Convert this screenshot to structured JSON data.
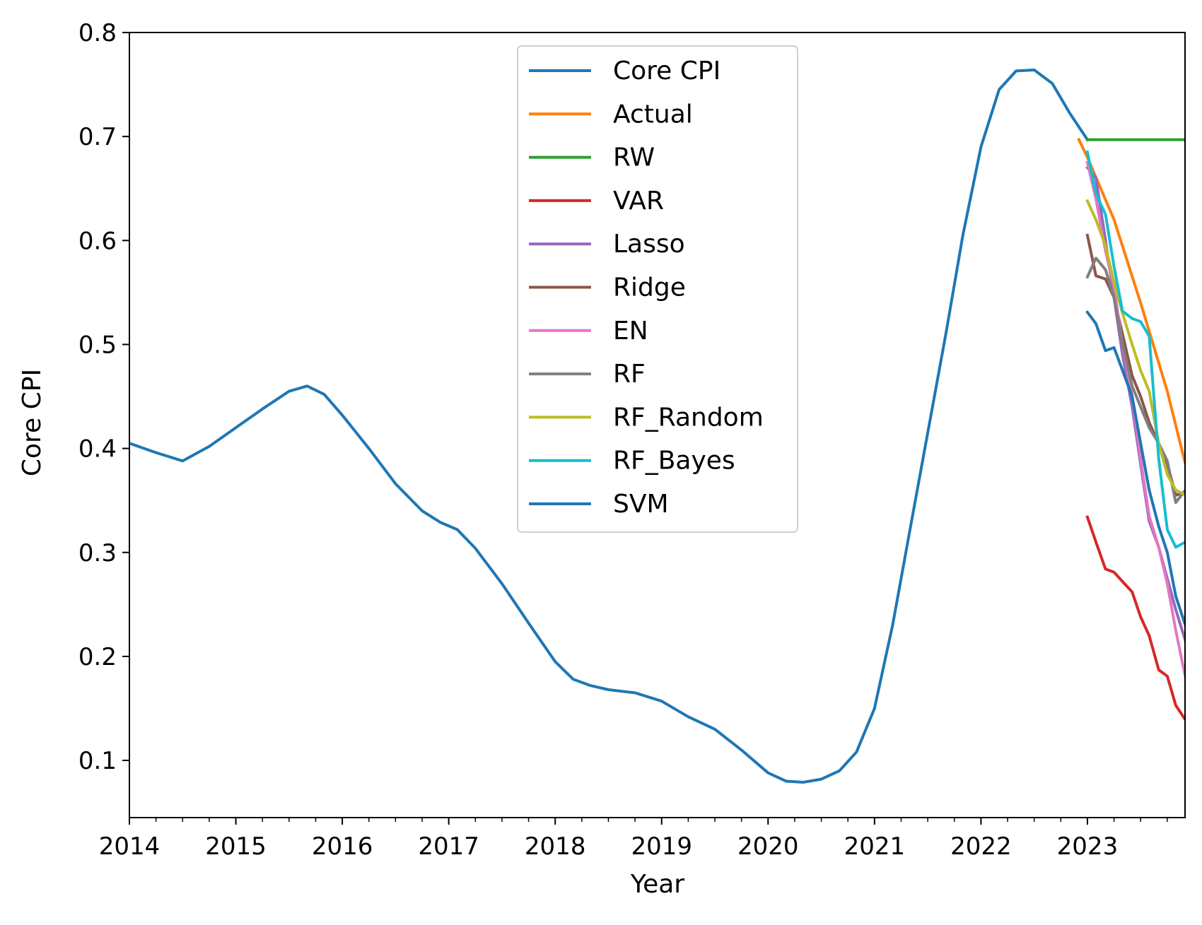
{
  "chart_data": {
    "type": "line",
    "xlabel": "Year",
    "ylabel": "Core CPI",
    "xlim": [
      2014.0,
      2023.917
    ],
    "ylim": [
      0.045,
      0.8
    ],
    "x_ticks": [
      2014,
      2015,
      2016,
      2017,
      2018,
      2019,
      2020,
      2021,
      2022,
      2023
    ],
    "y_ticks": [
      0.1,
      0.2,
      0.3,
      0.4,
      0.5,
      0.6,
      0.7,
      0.8
    ],
    "y_tick_labels": [
      "0.1",
      "0.2",
      "0.3",
      "0.4",
      "0.5",
      "0.6",
      "0.7",
      "0.8"
    ],
    "legend_position": "top-center",
    "series": [
      {
        "name": "Core CPI",
        "color": "#1f77b4",
        "points": [
          [
            2014.0,
            0.405
          ],
          [
            2014.25,
            0.396
          ],
          [
            2014.5,
            0.388
          ],
          [
            2014.75,
            0.402
          ],
          [
            2015.0,
            0.42
          ],
          [
            2015.25,
            0.438
          ],
          [
            2015.5,
            0.455
          ],
          [
            2015.67,
            0.46
          ],
          [
            2015.83,
            0.452
          ],
          [
            2016.0,
            0.432
          ],
          [
            2016.25,
            0.4
          ],
          [
            2016.5,
            0.366
          ],
          [
            2016.75,
            0.34
          ],
          [
            2016.92,
            0.329
          ],
          [
            2017.08,
            0.322
          ],
          [
            2017.25,
            0.304
          ],
          [
            2017.5,
            0.27
          ],
          [
            2017.75,
            0.232
          ],
          [
            2018.0,
            0.195
          ],
          [
            2018.17,
            0.178
          ],
          [
            2018.33,
            0.172
          ],
          [
            2018.5,
            0.168
          ],
          [
            2018.75,
            0.165
          ],
          [
            2019.0,
            0.157
          ],
          [
            2019.25,
            0.142
          ],
          [
            2019.5,
            0.13
          ],
          [
            2019.75,
            0.11
          ],
          [
            2020.0,
            0.088
          ],
          [
            2020.17,
            0.08
          ],
          [
            2020.33,
            0.079
          ],
          [
            2020.5,
            0.082
          ],
          [
            2020.67,
            0.09
          ],
          [
            2020.83,
            0.108
          ],
          [
            2021.0,
            0.15
          ],
          [
            2021.17,
            0.23
          ],
          [
            2021.33,
            0.32
          ],
          [
            2021.5,
            0.415
          ],
          [
            2021.67,
            0.51
          ],
          [
            2021.83,
            0.605
          ],
          [
            2022.0,
            0.69
          ],
          [
            2022.17,
            0.745
          ],
          [
            2022.33,
            0.763
          ],
          [
            2022.5,
            0.764
          ],
          [
            2022.67,
            0.751
          ],
          [
            2022.83,
            0.723
          ],
          [
            2023.0,
            0.697
          ]
        ]
      },
      {
        "name": "Actual",
        "color": "#ff7f0e",
        "points": [
          [
            2022.92,
            0.697
          ],
          [
            2023.0,
            0.68
          ],
          [
            2023.25,
            0.62
          ],
          [
            2023.5,
            0.54
          ],
          [
            2023.75,
            0.455
          ],
          [
            2023.92,
            0.385
          ]
        ]
      },
      {
        "name": "RW",
        "color": "#2ca02c",
        "points": [
          [
            2023.0,
            0.697
          ],
          [
            2023.92,
            0.697
          ]
        ]
      },
      {
        "name": "VAR",
        "color": "#d62728",
        "points": [
          [
            2023.0,
            0.334
          ],
          [
            2023.08,
            0.31
          ],
          [
            2023.17,
            0.284
          ],
          [
            2023.25,
            0.281
          ],
          [
            2023.33,
            0.272
          ],
          [
            2023.42,
            0.262
          ],
          [
            2023.5,
            0.238
          ],
          [
            2023.58,
            0.22
          ],
          [
            2023.67,
            0.187
          ],
          [
            2023.75,
            0.181
          ],
          [
            2023.83,
            0.153
          ],
          [
            2023.92,
            0.139
          ]
        ]
      },
      {
        "name": "Lasso",
        "color": "#9467bd",
        "points": [
          [
            2023.0,
            0.67
          ],
          [
            2023.08,
            0.66
          ],
          [
            2023.17,
            0.6
          ],
          [
            2023.25,
            0.545
          ],
          [
            2023.33,
            0.49
          ],
          [
            2023.42,
            0.44
          ],
          [
            2023.5,
            0.385
          ],
          [
            2023.58,
            0.33
          ],
          [
            2023.67,
            0.305
          ],
          [
            2023.75,
            0.275
          ],
          [
            2023.83,
            0.245
          ],
          [
            2023.92,
            0.215
          ]
        ]
      },
      {
        "name": "Ridge",
        "color": "#8c564b",
        "points": [
          [
            2023.0,
            0.605
          ],
          [
            2023.08,
            0.566
          ],
          [
            2023.17,
            0.563
          ],
          [
            2023.25,
            0.545
          ],
          [
            2023.33,
            0.51
          ],
          [
            2023.42,
            0.47
          ],
          [
            2023.5,
            0.45
          ],
          [
            2023.58,
            0.425
          ],
          [
            2023.67,
            0.405
          ],
          [
            2023.75,
            0.385
          ],
          [
            2023.83,
            0.355
          ],
          [
            2023.92,
            0.358
          ]
        ]
      },
      {
        "name": "EN",
        "color": "#e377c2",
        "points": [
          [
            2023.0,
            0.675
          ],
          [
            2023.08,
            0.64
          ],
          [
            2023.17,
            0.59
          ],
          [
            2023.25,
            0.555
          ],
          [
            2023.33,
            0.5
          ],
          [
            2023.42,
            0.45
          ],
          [
            2023.5,
            0.39
          ],
          [
            2023.58,
            0.335
          ],
          [
            2023.67,
            0.305
          ],
          [
            2023.75,
            0.27
          ],
          [
            2023.83,
            0.225
          ],
          [
            2023.92,
            0.18
          ]
        ]
      },
      {
        "name": "RF",
        "color": "#7f7f7f",
        "points": [
          [
            2023.0,
            0.565
          ],
          [
            2023.08,
            0.583
          ],
          [
            2023.17,
            0.572
          ],
          [
            2023.25,
            0.545
          ],
          [
            2023.33,
            0.5
          ],
          [
            2023.42,
            0.46
          ],
          [
            2023.5,
            0.44
          ],
          [
            2023.58,
            0.42
          ],
          [
            2023.67,
            0.405
          ],
          [
            2023.75,
            0.388
          ],
          [
            2023.83,
            0.348
          ],
          [
            2023.92,
            0.36
          ]
        ]
      },
      {
        "name": "RF_Random",
        "color": "#bcbd22",
        "points": [
          [
            2023.0,
            0.638
          ],
          [
            2023.08,
            0.62
          ],
          [
            2023.17,
            0.595
          ],
          [
            2023.25,
            0.56
          ],
          [
            2023.33,
            0.53
          ],
          [
            2023.42,
            0.5
          ],
          [
            2023.5,
            0.475
          ],
          [
            2023.58,
            0.455
          ],
          [
            2023.67,
            0.405
          ],
          [
            2023.75,
            0.375
          ],
          [
            2023.83,
            0.36
          ],
          [
            2023.92,
            0.355
          ]
        ]
      },
      {
        "name": "RF_Bayes",
        "color": "#17becf",
        "points": [
          [
            2023.0,
            0.685
          ],
          [
            2023.08,
            0.645
          ],
          [
            2023.17,
            0.625
          ],
          [
            2023.25,
            0.575
          ],
          [
            2023.33,
            0.532
          ],
          [
            2023.42,
            0.525
          ],
          [
            2023.5,
            0.522
          ],
          [
            2023.58,
            0.508
          ],
          [
            2023.67,
            0.39
          ],
          [
            2023.75,
            0.322
          ],
          [
            2023.83,
            0.305
          ],
          [
            2023.92,
            0.31
          ]
        ]
      },
      {
        "name": "SVM",
        "color": "#1f77b4",
        "points": [
          [
            2023.0,
            0.531
          ],
          [
            2023.08,
            0.52
          ],
          [
            2023.17,
            0.494
          ],
          [
            2023.25,
            0.497
          ],
          [
            2023.33,
            0.475
          ],
          [
            2023.42,
            0.45
          ],
          [
            2023.5,
            0.405
          ],
          [
            2023.58,
            0.36
          ],
          [
            2023.67,
            0.325
          ],
          [
            2023.75,
            0.3
          ],
          [
            2023.83,
            0.258
          ],
          [
            2023.92,
            0.23
          ]
        ]
      }
    ]
  }
}
